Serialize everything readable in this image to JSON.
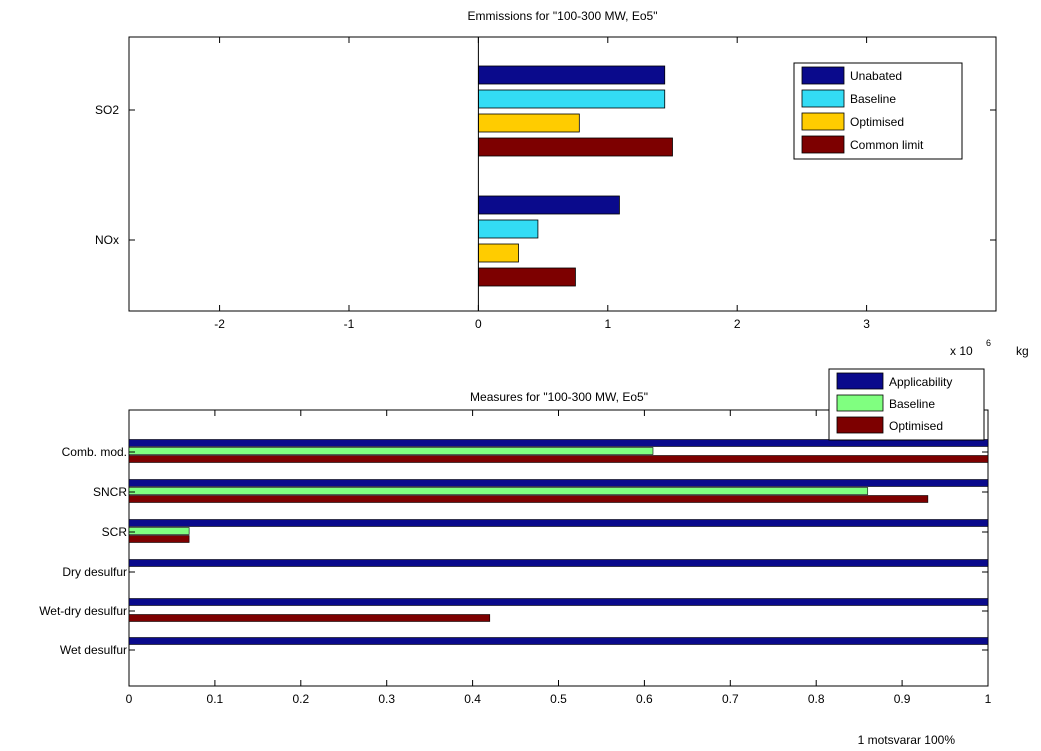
{
  "chart_data": [
    {
      "type": "bar",
      "orientation": "horizontal",
      "title": "Emmissions for \"100-300 MW, Eo5\"",
      "categories": [
        "SO2",
        "NOx"
      ],
      "series": [
        {
          "name": "Unabated",
          "color": "#0a0a8c",
          "values": [
            1.44,
            1.09
          ]
        },
        {
          "name": "Baseline",
          "color": "#33dcf5",
          "values": [
            1.44,
            0.46
          ]
        },
        {
          "name": "Optimised",
          "color": "#ffcc00",
          "values": [
            0.78,
            0.31
          ]
        },
        {
          "name": "Common limit",
          "color": "#7d0000",
          "values": [
            1.5,
            0.75
          ]
        }
      ],
      "xlim": [
        -2.7,
        4
      ],
      "xticks": [
        "-2",
        "-1",
        "0",
        "1",
        "2",
        "3"
      ],
      "xtick_values": [
        -2,
        -1,
        0,
        1,
        2,
        3
      ],
      "x_multiplier": "x 10",
      "x_multiplier_exp": "6",
      "x_unit": "kg",
      "legend_position": "top-right",
      "grid": false
    },
    {
      "type": "bar",
      "orientation": "horizontal",
      "title": "Measures for \"100-300 MW, Eo5\"",
      "categories": [
        "Comb. mod.",
        "SNCR",
        "SCR",
        "Dry desulfur",
        "Wet-dry desulfur",
        "Wet desulfur"
      ],
      "series": [
        {
          "name": "Applicability",
          "color": "#0a0a8c",
          "values": [
            1,
            1,
            1,
            1,
            1,
            1
          ]
        },
        {
          "name": "Baseline",
          "color": "#80ff80",
          "values": [
            0.61,
            0.86,
            0.07,
            0,
            0,
            0
          ]
        },
        {
          "name": "Optimised",
          "color": "#7d0000",
          "values": [
            1,
            0.93,
            0.07,
            0,
            0.42,
            0
          ]
        }
      ],
      "xlim": [
        0,
        1
      ],
      "xticks": [
        "0",
        "0.1",
        "0.2",
        "0.3",
        "0.4",
        "0.5",
        "0.6",
        "0.7",
        "0.8",
        "0.9",
        "1"
      ],
      "xtick_values": [
        0,
        0.1,
        0.2,
        0.3,
        0.4,
        0.5,
        0.6,
        0.7,
        0.8,
        0.9,
        1
      ],
      "footnote": "1 motsvarar 100%",
      "legend_position": "top-right",
      "grid": false
    }
  ]
}
